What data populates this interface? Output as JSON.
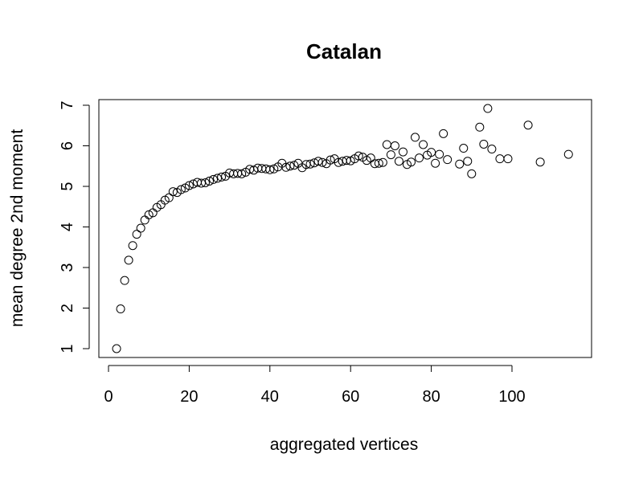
{
  "chart_data": {
    "type": "scatter",
    "title": "Catalan",
    "xlabel": "aggregated vertices",
    "ylabel": "mean degree 2nd moment",
    "xlim": [
      0,
      120
    ],
    "ylim": [
      1,
      7
    ],
    "x_ticks": [
      0,
      20,
      40,
      60,
      80,
      100
    ],
    "y_ticks": [
      1,
      2,
      3,
      4,
      5,
      6,
      7
    ],
    "marker": "open-circle",
    "grid": false,
    "legend": "none",
    "points": [
      [
        2,
        1.0
      ],
      [
        3,
        1.98
      ],
      [
        4,
        2.68
      ],
      [
        5,
        3.18
      ],
      [
        6,
        3.54
      ],
      [
        7,
        3.82
      ],
      [
        8,
        3.97
      ],
      [
        9,
        4.17
      ],
      [
        10,
        4.3
      ],
      [
        11,
        4.35
      ],
      [
        12,
        4.48
      ],
      [
        13,
        4.55
      ],
      [
        14,
        4.66
      ],
      [
        15,
        4.72
      ],
      [
        16,
        4.87
      ],
      [
        17,
        4.85
      ],
      [
        18,
        4.92
      ],
      [
        19,
        4.96
      ],
      [
        20,
        5.02
      ],
      [
        21,
        5.06
      ],
      [
        22,
        5.1
      ],
      [
        23,
        5.08
      ],
      [
        24,
        5.09
      ],
      [
        25,
        5.13
      ],
      [
        26,
        5.17
      ],
      [
        27,
        5.2
      ],
      [
        28,
        5.23
      ],
      [
        29,
        5.25
      ],
      [
        30,
        5.33
      ],
      [
        31,
        5.31
      ],
      [
        32,
        5.32
      ],
      [
        33,
        5.31
      ],
      [
        34,
        5.35
      ],
      [
        35,
        5.42
      ],
      [
        36,
        5.4
      ],
      [
        37,
        5.45
      ],
      [
        38,
        5.44
      ],
      [
        39,
        5.43
      ],
      [
        40,
        5.41
      ],
      [
        41,
        5.43
      ],
      [
        42,
        5.48
      ],
      [
        43,
        5.57
      ],
      [
        44,
        5.47
      ],
      [
        45,
        5.5
      ],
      [
        46,
        5.52
      ],
      [
        47,
        5.57
      ],
      [
        48,
        5.46
      ],
      [
        49,
        5.54
      ],
      [
        50,
        5.55
      ],
      [
        51,
        5.58
      ],
      [
        52,
        5.62
      ],
      [
        53,
        5.59
      ],
      [
        54,
        5.56
      ],
      [
        55,
        5.65
      ],
      [
        56,
        5.68
      ],
      [
        57,
        5.59
      ],
      [
        58,
        5.62
      ],
      [
        59,
        5.64
      ],
      [
        60,
        5.63
      ],
      [
        61,
        5.68
      ],
      [
        62,
        5.75
      ],
      [
        63,
        5.72
      ],
      [
        64,
        5.64
      ],
      [
        65,
        5.7
      ],
      [
        66,
        5.56
      ],
      [
        67,
        5.57
      ],
      [
        68,
        5.59
      ],
      [
        69,
        6.03
      ],
      [
        70,
        5.78
      ],
      [
        71,
        6.0
      ],
      [
        72,
        5.62
      ],
      [
        73,
        5.85
      ],
      [
        74,
        5.54
      ],
      [
        75,
        5.6
      ],
      [
        76,
        6.21
      ],
      [
        77,
        5.7
      ],
      [
        78,
        6.03
      ],
      [
        79,
        5.77
      ],
      [
        80,
        5.84
      ],
      [
        81,
        5.57
      ],
      [
        82,
        5.79
      ],
      [
        83,
        6.3
      ],
      [
        84,
        5.66
      ],
      [
        87,
        5.55
      ],
      [
        88,
        5.94
      ],
      [
        89,
        5.62
      ],
      [
        90,
        5.31
      ],
      [
        92,
        6.46
      ],
      [
        93,
        6.04
      ],
      [
        94,
        6.92
      ],
      [
        95,
        5.92
      ],
      [
        97,
        5.68
      ],
      [
        99,
        5.68
      ],
      [
        104,
        6.51
      ],
      [
        107,
        5.6
      ],
      [
        114,
        5.79
      ]
    ]
  }
}
